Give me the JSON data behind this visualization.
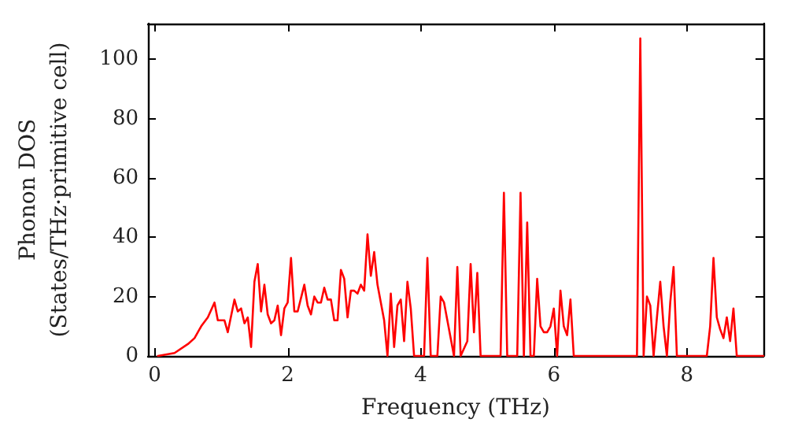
{
  "chart_data": {
    "type": "line",
    "xlabel": "Frequency (THz)",
    "ylabel": "Phonon DOS\n(States/THz·primitive cell)",
    "xlim": [
      -0.1,
      9.15
    ],
    "ylim": [
      0,
      112
    ],
    "xticks": [
      0,
      2,
      4,
      6,
      8
    ],
    "yticks": [
      0,
      20,
      40,
      60,
      80,
      100
    ],
    "grid": false,
    "marker": "none",
    "line_style": "solid",
    "series": [
      {
        "color": "#ff0000",
        "x": [
          0.05,
          0.3,
          0.5,
          0.6,
          0.7,
          0.8,
          0.9,
          0.95,
          1.05,
          1.1,
          1.2,
          1.25,
          1.3,
          1.35,
          1.4,
          1.45,
          1.5,
          1.55,
          1.6,
          1.65,
          1.7,
          1.75,
          1.8,
          1.85,
          1.9,
          1.95,
          2.0,
          2.05,
          2.1,
          2.15,
          2.25,
          2.3,
          2.35,
          2.4,
          2.45,
          2.5,
          2.55,
          2.6,
          2.65,
          2.7,
          2.75,
          2.8,
          2.85,
          2.9,
          2.95,
          3.0,
          3.05,
          3.1,
          3.15,
          3.2,
          3.25,
          3.3,
          3.35,
          3.45,
          3.5,
          3.55,
          3.6,
          3.65,
          3.7,
          3.75,
          3.8,
          3.85,
          3.9,
          4.05,
          4.1,
          4.15,
          4.25,
          4.3,
          4.35,
          4.5,
          4.55,
          4.6,
          4.7,
          4.75,
          4.8,
          4.85,
          4.9,
          5.2,
          5.25,
          5.3,
          5.45,
          5.5,
          5.55,
          5.6,
          5.65,
          5.7,
          5.75,
          5.8,
          5.85,
          5.9,
          5.95,
          6.0,
          6.05,
          6.1,
          6.15,
          6.2,
          6.25,
          6.3,
          7.25,
          7.3,
          7.35,
          7.4,
          7.45,
          7.5,
          7.55,
          7.6,
          7.65,
          7.7,
          7.75,
          7.8,
          7.85,
          8.3,
          8.35,
          8.4,
          8.45,
          8.5,
          8.55,
          8.6,
          8.65,
          8.7,
          8.75,
          9.15
        ],
        "values": [
          0,
          1,
          4,
          6,
          10,
          13,
          18,
          12,
          12,
          8,
          19,
          15,
          16,
          11,
          13,
          3,
          25,
          31,
          15,
          24,
          14,
          11,
          12,
          17,
          7,
          16,
          18,
          33,
          15,
          15,
          24,
          17,
          14,
          20,
          18,
          18,
          23,
          19,
          19,
          12,
          12,
          29,
          26,
          13,
          22,
          22,
          21,
          24,
          22,
          41,
          27,
          35,
          24,
          12,
          0,
          21,
          3,
          17,
          19,
          5,
          25,
          16,
          0,
          0,
          33,
          0,
          0,
          20,
          18,
          0,
          30,
          0,
          5,
          31,
          8,
          28,
          0,
          0,
          55,
          0,
          0,
          55,
          0,
          45,
          0,
          0,
          26,
          10,
          8,
          8,
          10,
          16,
          0,
          22,
          10,
          7,
          19,
          0,
          0,
          107,
          0,
          20,
          17,
          0,
          13,
          25,
          10,
          0,
          18,
          30,
          0,
          0,
          10,
          33,
          13,
          9,
          6,
          13,
          5,
          16,
          0,
          0
        ]
      }
    ]
  }
}
